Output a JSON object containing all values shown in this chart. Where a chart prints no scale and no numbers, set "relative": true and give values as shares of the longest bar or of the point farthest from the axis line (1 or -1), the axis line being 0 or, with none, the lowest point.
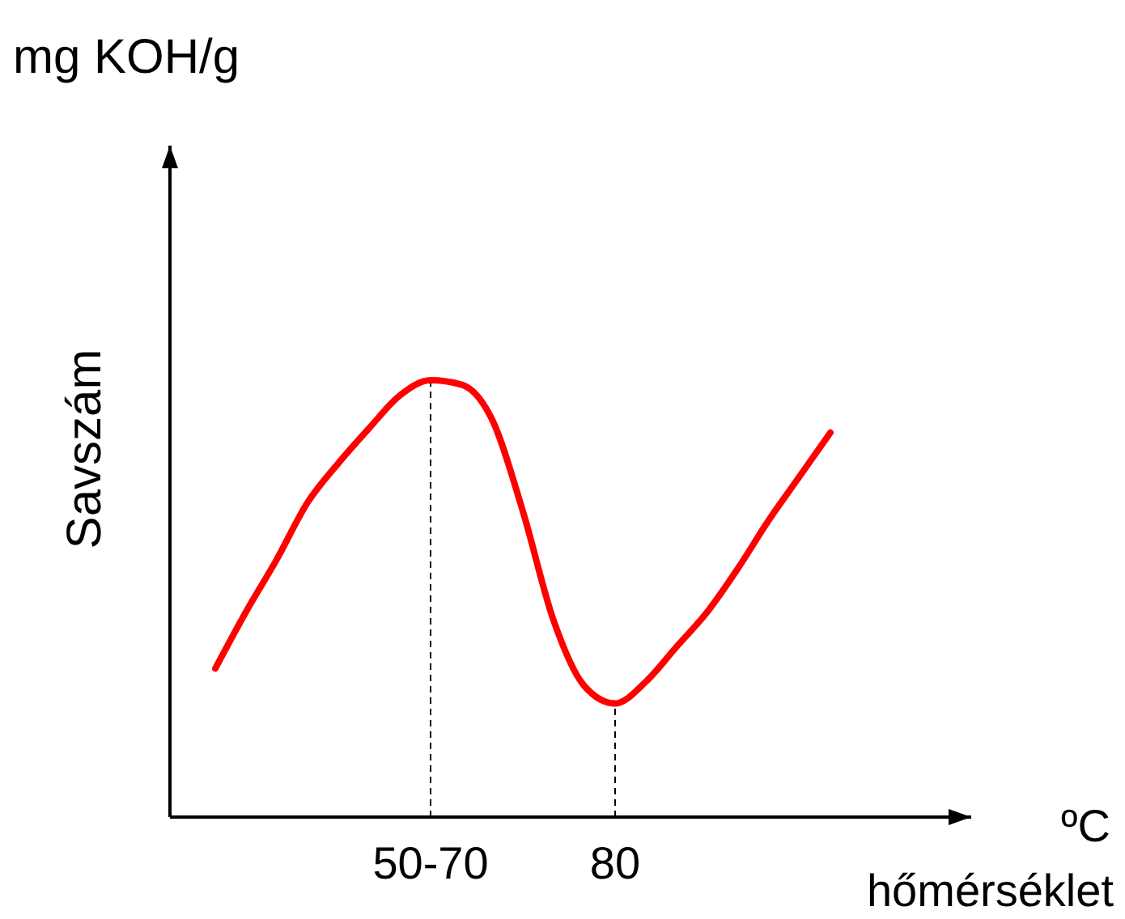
{
  "chart_data": {
    "type": "line",
    "relative": true,
    "xlabel": "hőmérséklet",
    "ylabel": "Savszám",
    "annotations": [
      "mg KOH/g",
      "ºC"
    ],
    "categories": [
      null,
      null,
      null,
      null,
      null,
      null,
      null,
      "50-70",
      null,
      null,
      null,
      null,
      null,
      "80",
      null,
      null,
      null,
      null,
      null,
      null,
      null
    ],
    "series": [
      {
        "color": "#ff0000",
        "values": [
          0.34,
          0.47,
          0.59,
          0.72,
          0.81,
          0.89,
          0.965,
          1,
          0.99,
          0.91,
          0.7,
          0.45,
          0.3,
          0.26,
          0.31,
          0.39,
          0.47,
          0.57,
          0.68,
          0.78,
          0.88
        ]
      }
    ],
    "ref_lines": [
      {
        "axis": "x",
        "value": "50-70",
        "line_style": "dashed"
      },
      {
        "axis": "x",
        "value": "80",
        "line_style": "dashed"
      }
    ],
    "line_style": "solid",
    "marker": "none",
    "grid": false
  }
}
